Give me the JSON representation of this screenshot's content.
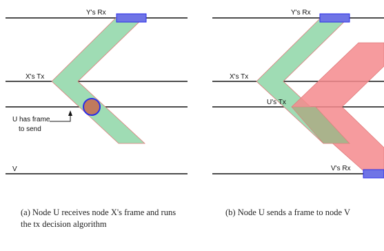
{
  "panel_a": {
    "labels": {
      "y_rx": "Y's Rx",
      "x_tx": "X's Tx",
      "u_has_frame_line1": "U has frame",
      "u_has_frame_line2": "to send",
      "v": "V"
    },
    "caption": "(a) Node U receives node X's frame and runs the tx decision algorithm"
  },
  "panel_b": {
    "labels": {
      "y_rx": "Y's Rx",
      "x_tx": "X's Tx",
      "u_tx": "U's Tx",
      "v_rx": "V's Rx"
    },
    "caption": "(b) Node U sends a frame to node V"
  },
  "colors": {
    "x_transmission": "#9fdcb4",
    "u_transmission": "#f4898d",
    "overlap": "#aab38c",
    "receive_box": "#6f74e6",
    "decision_point": "#c07a5d",
    "decision_outline": "#2a2ee8",
    "timeline": "#111111"
  }
}
